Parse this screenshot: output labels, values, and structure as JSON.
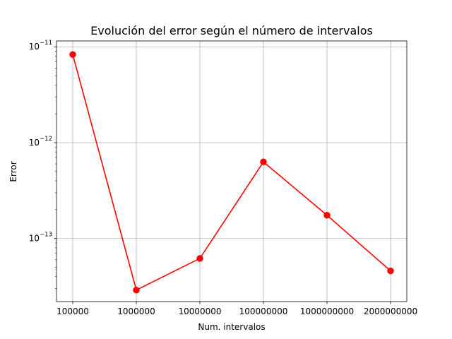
{
  "chart_data": {
    "type": "line",
    "title": "Evolución del error según el número de intervalos",
    "xlabel": "Num. intervalos",
    "ylabel": "Error",
    "categories": [
      "100000",
      "1000000",
      "10000000",
      "100000000",
      "1000000000",
      "2000000000"
    ],
    "series": [
      {
        "values": [
          8.3e-12,
          2.9e-14,
          6.2e-14,
          6.3e-13,
          1.75e-13,
          4.6e-14
        ],
        "color": "#ff0000",
        "marker": "circle"
      }
    ],
    "y_scale": "log",
    "ylim": [
      2.2e-14,
      1.15e-11
    ],
    "y_ticks": [
      {
        "base": "10",
        "exp": "−11",
        "value": 1e-11
      },
      {
        "base": "10",
        "exp": "−12",
        "value": 1e-12
      },
      {
        "base": "10",
        "exp": "−13",
        "value": 1e-13
      }
    ],
    "grid": true,
    "legend": "none"
  }
}
